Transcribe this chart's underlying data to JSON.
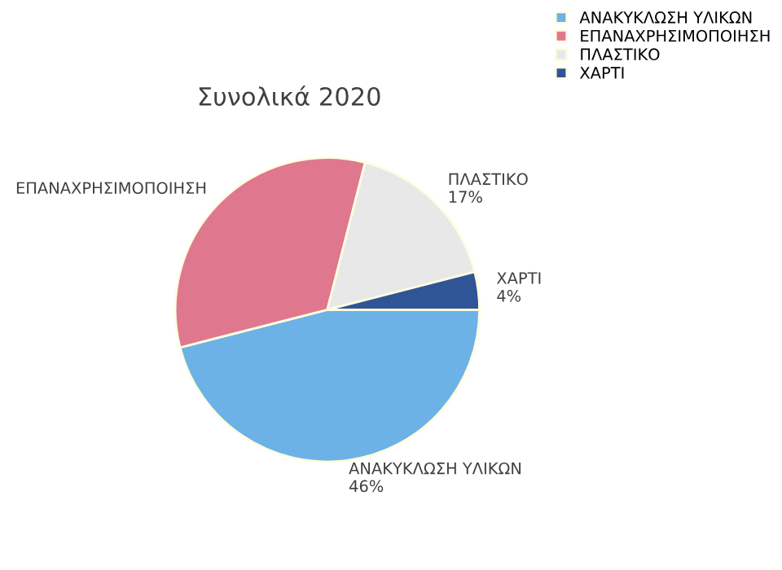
{
  "chart_data": {
    "type": "pie",
    "title": "Συνολικά 2020",
    "categories": [
      "ΑΝΑΚΥΚΛΩΣΗ ΥΛΙΚΩΝ",
      "ΕΠΑΝΑΧΡΗΣΙΜΟΠΟΙΗΣΗ",
      "ΠΛΑΣΤΙΚΟ",
      "ΧΑΡΤΙ"
    ],
    "values": [
      46,
      33,
      17,
      4
    ],
    "value_labels": [
      "46%",
      null,
      "17%",
      "4%"
    ],
    "colors": [
      "#6cb2e6",
      "#df788e",
      "#e8e8e8",
      "#2f5597"
    ],
    "legend": "top right"
  }
}
